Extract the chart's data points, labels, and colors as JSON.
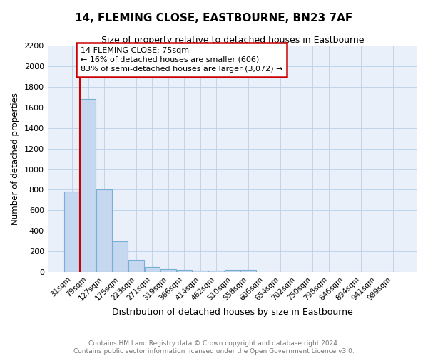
{
  "title": "14, FLEMING CLOSE, EASTBOURNE, BN23 7AF",
  "subtitle": "Size of property relative to detached houses in Eastbourne",
  "xlabel": "Distribution of detached houses by size in Eastbourne",
  "ylabel": "Number of detached properties",
  "footer_line1": "Contains HM Land Registry data © Crown copyright and database right 2024.",
  "footer_line2": "Contains public sector information licensed under the Open Government Licence v3.0.",
  "categories": [
    "31sqm",
    "79sqm",
    "127sqm",
    "175sqm",
    "223sqm",
    "271sqm",
    "319sqm",
    "366sqm",
    "414sqm",
    "462sqm",
    "510sqm",
    "558sqm",
    "606sqm",
    "654sqm",
    "702sqm",
    "750sqm",
    "798sqm",
    "846sqm",
    "894sqm",
    "941sqm",
    "989sqm"
  ],
  "values": [
    780,
    1680,
    800,
    300,
    120,
    50,
    30,
    20,
    15,
    12,
    20,
    20,
    0,
    0,
    0,
    0,
    0,
    0,
    0,
    0,
    0
  ],
  "bar_color": "#c5d8f0",
  "bar_edge_color": "#7aadd4",
  "grid_color": "#b8cfe8",
  "background_color": "#eaf0f9",
  "red_line_x": 0.5,
  "annotation_text": "14 FLEMING CLOSE: 75sqm\n← 16% of detached houses are smaller (606)\n83% of semi-detached houses are larger (3,072) →",
  "annotation_box_color": "#ffffff",
  "annotation_box_edge_color": "#cc0000",
  "ylim": [
    0,
    2200
  ],
  "yticks": [
    0,
    200,
    400,
    600,
    800,
    1000,
    1200,
    1400,
    1600,
    1800,
    2000,
    2200
  ]
}
